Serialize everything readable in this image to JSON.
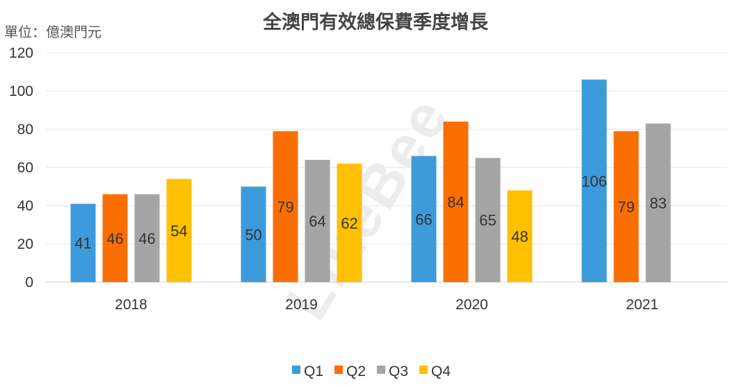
{
  "chart_data": {
    "type": "bar",
    "title": "全澳門有效總保費季度增長",
    "unit_label": "單位：億澳門元",
    "categories": [
      "2018",
      "2019",
      "2020",
      "2021"
    ],
    "series": [
      {
        "name": "Q1",
        "color": "#3D9BDB",
        "values": [
          41,
          50,
          66,
          106
        ]
      },
      {
        "name": "Q2",
        "color": "#FA6F00",
        "values": [
          46,
          79,
          84,
          79
        ]
      },
      {
        "name": "Q3",
        "color": "#A5A5A5",
        "values": [
          46,
          64,
          65,
          83
        ]
      },
      {
        "name": "Q4",
        "color": "#FFC000",
        "values": [
          54,
          62,
          48,
          null
        ]
      }
    ],
    "ylim": [
      0,
      120
    ],
    "yticks": [
      0,
      20,
      40,
      60,
      80,
      100,
      120
    ],
    "grid": true,
    "legend_position": "bottom",
    "watermark": "LikeBee"
  }
}
